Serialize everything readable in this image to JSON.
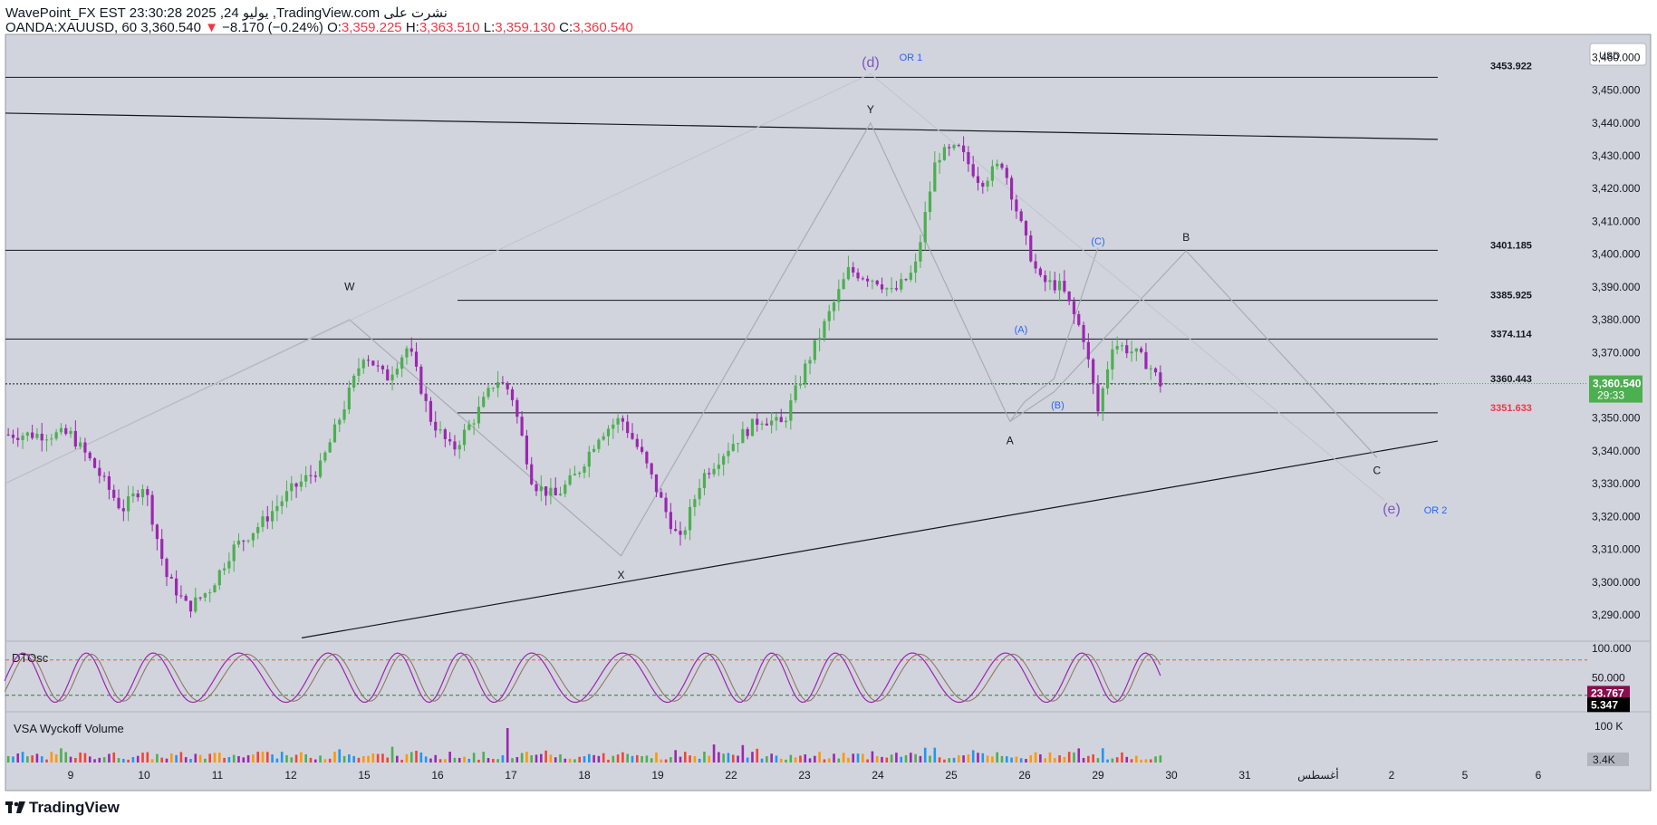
{
  "header": {
    "line1": "WavePoint_FX EST 23:30:28 2025 ,24 يوليو ,TradingView.com نشرت على",
    "symbol": "OANDA:XAUUSD, 60",
    "last": "3,360.540",
    "change_arrow": "▼",
    "change": "−8.170 (−0.24%)",
    "o_label": "O:",
    "o": "3,359.225",
    "h_label": "H:",
    "h": "3,363.510",
    "l_label": "L:",
    "l": "3,359.130",
    "c_label": "C:",
    "c": "3,360.540"
  },
  "currency": "USD",
  "colors": {
    "background": "#d1d4dc",
    "up": "#4caf50",
    "down": "#9c27b0",
    "price_tag": "#4caf50",
    "red_level": "#f23645",
    "osc_upper": "#ef5350",
    "osc_lower": "#2e7d32",
    "wave_label": "#2962ff",
    "wave_big": "#7e57c2"
  },
  "price_tag": {
    "value": "3,360.540",
    "countdown": "29:33"
  },
  "price_levels": [
    "3453.922",
    "3401.185",
    "3385.925",
    "3374.114",
    "3360.443",
    "3351.633"
  ],
  "wave_labels": {
    "d": "(d)",
    "or1": "OR 1",
    "e": "(e)",
    "or2": "OR 2",
    "W": "W",
    "X": "X",
    "Y": "Y",
    "A": "A",
    "B": "B",
    "C": "C",
    "pA": "(A)",
    "pB": "(B)",
    "pC": "(C)"
  },
  "oscillator": {
    "name": "DTOsc",
    "value1": "23.767",
    "value2": "5.347",
    "tick_top": "100.000",
    "tick_mid": "50.000"
  },
  "volume": {
    "name": "VSA Wyckoff Volume",
    "tick_top": "100 K",
    "tick_low": "3.4K"
  },
  "footer": {
    "brand": "TradingView"
  },
  "chart_data": {
    "type": "candlestick",
    "symbol": "OANDA:XAUUSD",
    "timeframe": "60",
    "y_axis_ticks": [
      3460,
      3450,
      3440,
      3430,
      3420,
      3410,
      3400,
      3390,
      3380,
      3370,
      3360,
      3350,
      3340,
      3330,
      3320,
      3310,
      3300,
      3290
    ],
    "y_tick_labels": [
      "3,460.000",
      "3,450.000",
      "3,440.000",
      "3,430.000",
      "3,420.000",
      "3,410.000",
      "3,400.000",
      "3,390.000",
      "3,380.000",
      "3,370.000",
      "3,360.000",
      "3,350.000",
      "3,340.000",
      "3,330.000",
      "3,320.000",
      "3,310.000",
      "3,300.000",
      "3,290.000"
    ],
    "ylim": [
      3282,
      3467
    ],
    "x_tick_labels": [
      "9",
      "10",
      "11",
      "12",
      "15",
      "16",
      "17",
      "18",
      "19",
      "22",
      "23",
      "24",
      "25",
      "26",
      "29",
      "30",
      "31",
      "أغسطس",
      "2",
      "5",
      "6"
    ],
    "close_path": [
      [
        0,
        3345
      ],
      [
        0.3,
        3336
      ],
      [
        0.7,
        3322
      ],
      [
        1.0,
        3330
      ],
      [
        1.3,
        3302
      ],
      [
        1.6,
        3292
      ],
      [
        1.9,
        3298
      ],
      [
        2.2,
        3310
      ],
      [
        2.6,
        3318
      ],
      [
        3.0,
        3328
      ],
      [
        3.4,
        3335
      ],
      [
        3.7,
        3352
      ],
      [
        4.0,
        3370
      ],
      [
        4.3,
        3362
      ],
      [
        4.6,
        3372
      ],
      [
        4.9,
        3350
      ],
      [
        5.2,
        3340
      ],
      [
        5.5,
        3350
      ],
      [
        5.8,
        3362
      ],
      [
        6.0,
        3358
      ],
      [
        6.3,
        3330
      ],
      [
        6.6,
        3326
      ],
      [
        6.9,
        3333
      ],
      [
        7.2,
        3345
      ],
      [
        7.5,
        3350
      ],
      [
        7.8,
        3338
      ],
      [
        8.1,
        3322
      ],
      [
        8.3,
        3312
      ],
      [
        8.6,
        3332
      ],
      [
        9.0,
        3342
      ],
      [
        9.4,
        3350
      ],
      [
        9.7,
        3348
      ],
      [
        10.0,
        3365
      ],
      [
        10.3,
        3380
      ],
      [
        10.6,
        3395
      ],
      [
        11.0,
        3392
      ],
      [
        11.2,
        3388
      ],
      [
        11.5,
        3395
      ],
      [
        11.8,
        3430
      ],
      [
        12.1,
        3432
      ],
      [
        12.4,
        3422
      ],
      [
        12.7,
        3428
      ],
      [
        13.0,
        3405
      ],
      [
        13.2,
        3392
      ],
      [
        13.5,
        3390
      ],
      [
        13.8,
        3375
      ],
      [
        14.0,
        3352
      ],
      [
        14.2,
        3373
      ],
      [
        14.5,
        3370
      ],
      [
        14.7,
        3366
      ],
      [
        14.85,
        3360.54
      ]
    ],
    "horizontal_levels": [
      {
        "price": 3453.922,
        "label": "3453.922"
      },
      {
        "price": 3401.185,
        "label": "3401.185"
      },
      {
        "price": 3385.925,
        "label": "3385.925"
      },
      {
        "price": 3374.114,
        "label": "3374.114"
      },
      {
        "price": 3360.443,
        "label": "3360.443"
      },
      {
        "price": 3351.633,
        "label": "3351.633"
      }
    ],
    "trendlines": [
      {
        "name": "upper",
        "from": [
          0,
          3443
        ],
        "to": [
          19.2,
          3435
        ]
      },
      {
        "name": "lower",
        "from": [
          4.0,
          3283
        ],
        "to": [
          19.2,
          3343
        ]
      }
    ],
    "wave_points": [
      {
        "label": "W",
        "x": 3.8,
        "price": 3380
      },
      {
        "label": "X",
        "x": 7.5,
        "price": 3308
      },
      {
        "label": "Y",
        "x": 10.9,
        "price": 3440
      },
      {
        "label": "A",
        "x": 12.8,
        "price": 3349
      },
      {
        "label": "(A)",
        "x": 12.9,
        "price": 3373
      },
      {
        "label": "(B)",
        "x": 13.4,
        "price": 3356
      },
      {
        "label": "(C)",
        "x": 14.0,
        "price": 3402
      },
      {
        "label": "B",
        "x": 15.2,
        "price": 3401
      },
      {
        "label": "C",
        "x": 17.8,
        "price": 3338
      },
      {
        "label": "(d)",
        "x": 10.9,
        "price": 3455
      },
      {
        "label": "(e)",
        "x": 18.0,
        "price": 3325
      }
    ],
    "last_price": 3360.54,
    "oscillator_levels": [
      100,
      50
    ],
    "volume_max": "100 K"
  }
}
